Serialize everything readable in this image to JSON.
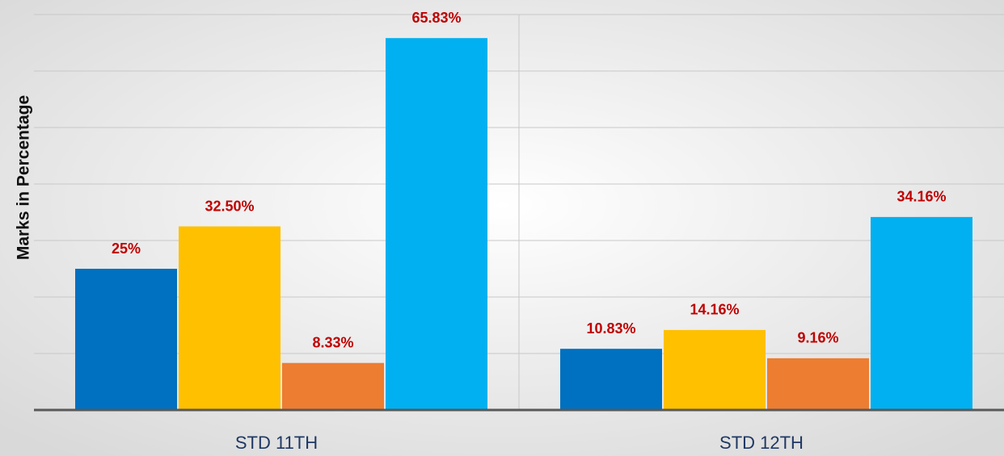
{
  "chart_data": {
    "type": "bar",
    "y_label": "Marks in Percentage",
    "categories": [
      "STD 11TH",
      "STD 12TH"
    ],
    "series": [
      {
        "color": "#0070c0",
        "values": [
          25,
          10.83
        ],
        "value_labels": [
          "25%",
          "10.83%"
        ]
      },
      {
        "color": "#ffc000",
        "values": [
          32.5,
          14.16
        ],
        "value_labels": [
          "32.50%",
          "14.16%"
        ]
      },
      {
        "color": "#ed7d31",
        "values": [
          8.33,
          9.16
        ],
        "value_labels": [
          "8.33%",
          "9.16%"
        ]
      },
      {
        "color": "#00b0f0",
        "values": [
          65.83,
          34.16
        ],
        "value_labels": [
          "65.83%",
          "34.16%"
        ]
      }
    ],
    "ylim": [
      0,
      70
    ],
    "yticks": [
      0,
      10,
      20,
      30,
      40,
      50,
      60,
      70
    ],
    "grid": true
  }
}
